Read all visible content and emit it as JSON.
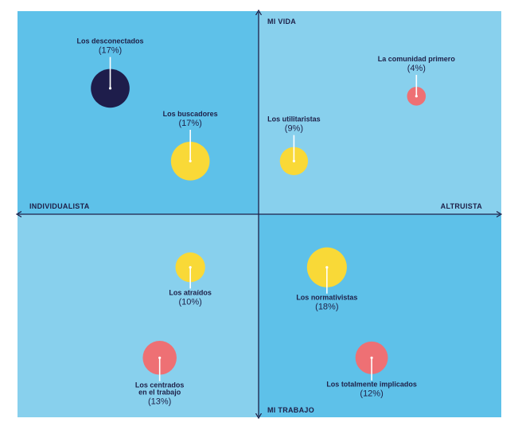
{
  "chart_data": {
    "type": "scatter",
    "title": "",
    "x_axis": {
      "negative_label": "INDIVIDUALISTA",
      "positive_label": "ALTRUISTA",
      "range": [
        -10,
        10
      ]
    },
    "y_axis": {
      "positive_label": "MI VIDA",
      "negative_label": "MI TRABAJO",
      "range": [
        -10,
        10
      ]
    },
    "segments": [
      {
        "name": "Los desconectados",
        "name_lines": [
          "Los desconectados"
        ],
        "percent_label": "(17%)",
        "value": 17,
        "x": -6.3,
        "y": 6.4,
        "color": "#1e1d4b",
        "label_pos": "above"
      },
      {
        "name": "Los buscadores",
        "name_lines": [
          "Los buscadores"
        ],
        "percent_label": "(17%)",
        "value": 17,
        "x": -2.9,
        "y": 2.7,
        "color": "#f9d937",
        "label_pos": "above"
      },
      {
        "name": "Los utilitaristas",
        "name_lines": [
          "Los utilitaristas"
        ],
        "percent_label": "(9%)",
        "value": 9,
        "x": 1.5,
        "y": 2.7,
        "color": "#f9d937",
        "label_pos": "above"
      },
      {
        "name": "La comunidad primero",
        "name_lines": [
          "La comunidad primero"
        ],
        "percent_label": "(4%)",
        "value": 4,
        "x": 6.7,
        "y": 6.0,
        "color": "#ee7074",
        "label_pos": "above"
      },
      {
        "name": "Los atraídos",
        "name_lines": [
          "Los atraídos"
        ],
        "percent_label": "(10%)",
        "value": 10,
        "x": -2.9,
        "y": -2.7,
        "color": "#f9d937",
        "label_pos": "below"
      },
      {
        "name": "Los normativistas",
        "name_lines": [
          "Los normativistas"
        ],
        "percent_label": "(18%)",
        "value": 18,
        "x": 2.9,
        "y": -2.7,
        "color": "#f9d937",
        "label_pos": "below"
      },
      {
        "name": "Los centrados en el trabajo",
        "name_lines": [
          "Los centrados",
          "en el trabajo"
        ],
        "percent_label": "(13%)",
        "value": 13,
        "x": -4.2,
        "y": -7.3,
        "color": "#ee7074",
        "label_pos": "below"
      },
      {
        "name": "Los totalmente implicados",
        "name_lines": [
          "Los totalmente implicados"
        ],
        "percent_label": "(12%)",
        "value": 12,
        "x": 4.8,
        "y": -7.3,
        "color": "#ee7074",
        "label_pos": "below"
      }
    ],
    "quadrant_colors": {
      "individualist_life": "#5ec1e9",
      "altruist_life": "#88d0ed",
      "individualist_work": "#88d0ed",
      "altruist_work": "#5ec1e9"
    },
    "axis_color": "#1e2048",
    "pointer_color": "#ffffff",
    "legend": "none"
  }
}
